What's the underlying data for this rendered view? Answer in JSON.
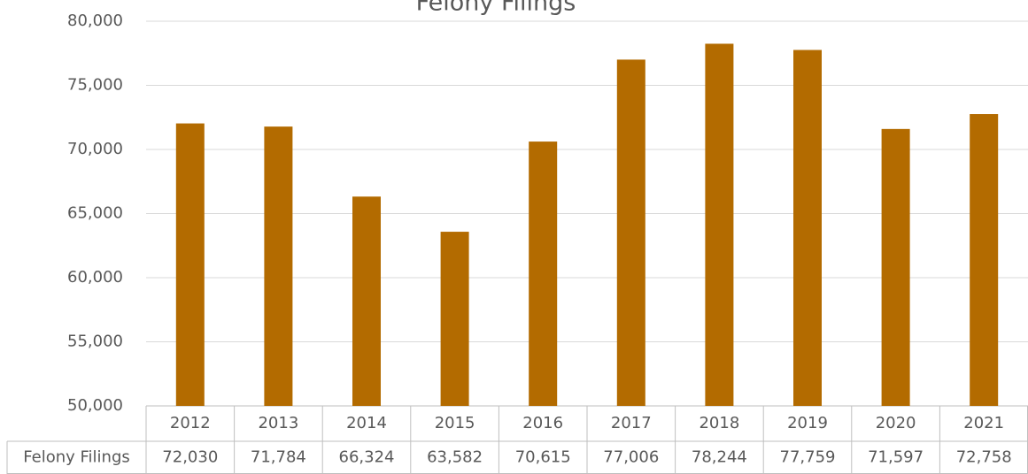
{
  "chart_data": {
    "type": "bar",
    "title": "Felony Filings",
    "categories": [
      "2012",
      "2013",
      "2014",
      "2015",
      "2016",
      "2017",
      "2018",
      "2019",
      "2020",
      "2021"
    ],
    "series": [
      {
        "name": "Felony Filings",
        "color": "#b36b00",
        "values": [
          72030,
          71784,
          66324,
          63582,
          70615,
          77006,
          78244,
          77759,
          71597,
          72758
        ],
        "value_labels": [
          "72,030",
          "71,784",
          "66,324",
          "63,582",
          "70,615",
          "77,006",
          "78,244",
          "77,759",
          "71,597",
          "72,758"
        ]
      }
    ],
    "ylim": [
      50000,
      80000
    ],
    "yticks": [
      {
        "value": 50000,
        "label": "50,000"
      },
      {
        "value": 55000,
        "label": "55,000"
      },
      {
        "value": 60000,
        "label": "60,000"
      },
      {
        "value": 65000,
        "label": "65,000"
      },
      {
        "value": 70000,
        "label": "70,000"
      },
      {
        "value": 75000,
        "label": "75,000"
      },
      {
        "value": 80000,
        "label": "80,000"
      }
    ],
    "grid": true
  }
}
